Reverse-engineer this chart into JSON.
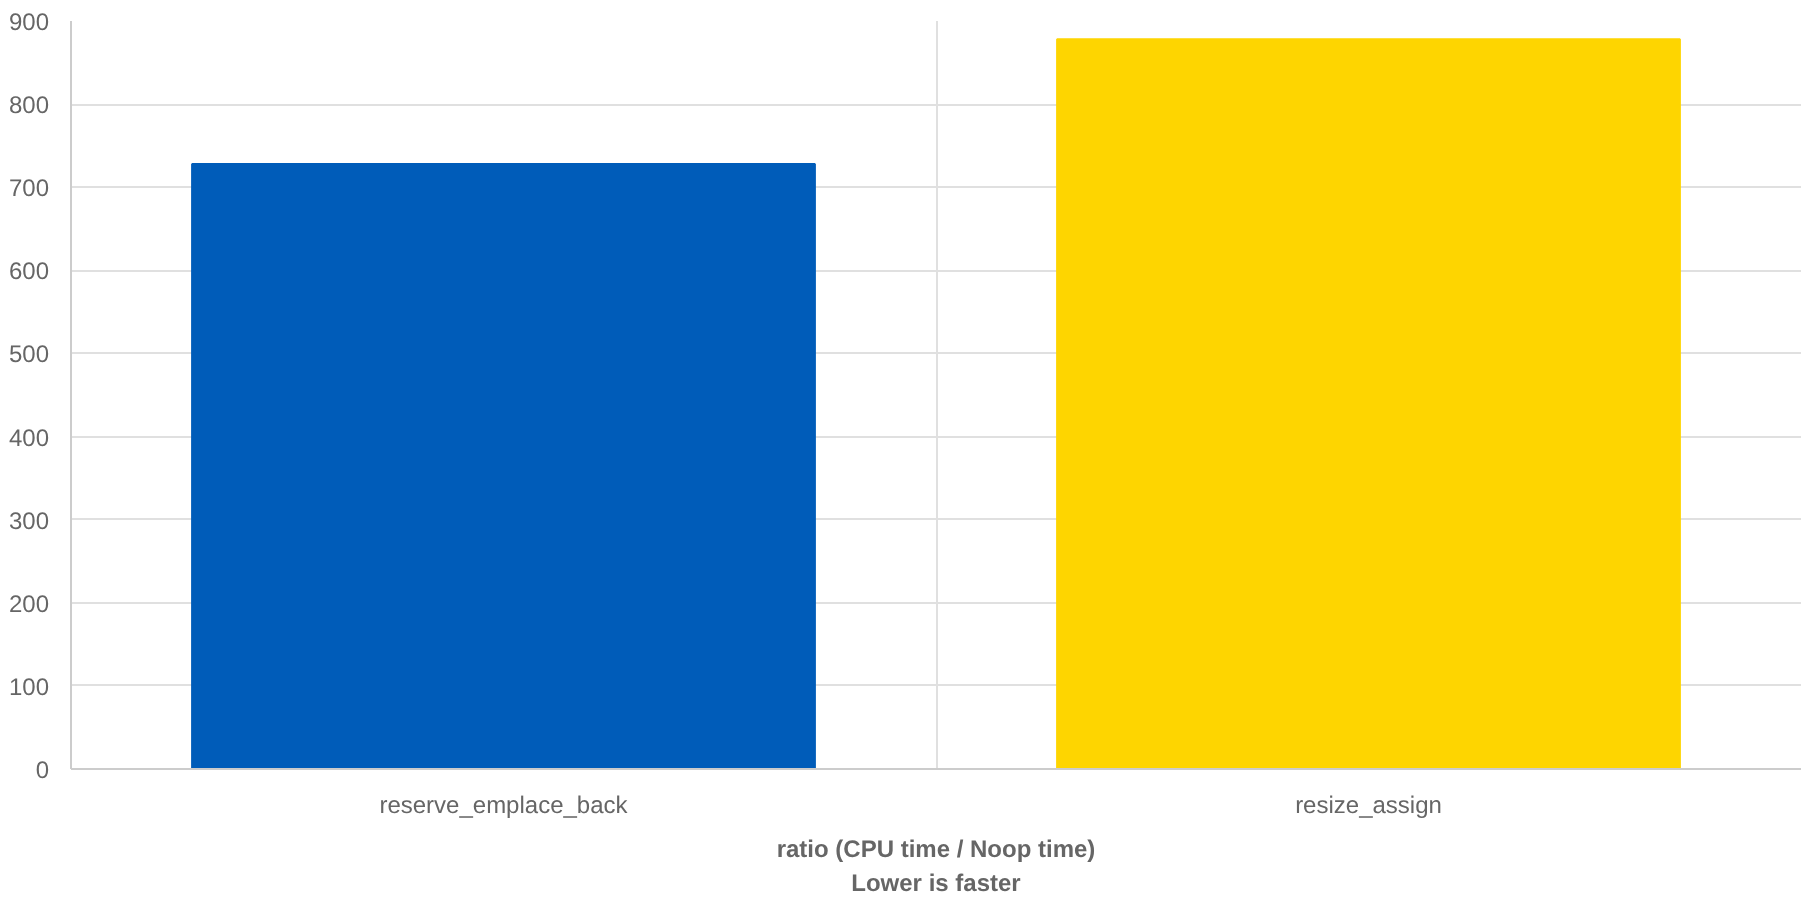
{
  "chart_data": {
    "type": "bar",
    "xlabel": "ratio (CPU time / Noop time)\nLower is faster",
    "categories": [
      "reserve_emplace_back",
      "resize_assign"
    ],
    "values": [
      728,
      878
    ],
    "colors": [
      "#005cb9",
      "#fed500"
    ],
    "ylim": [
      0,
      900
    ],
    "yticks": [
      0,
      100,
      200,
      300,
      400,
      500,
      600,
      700,
      800,
      900
    ],
    "grid": true
  }
}
